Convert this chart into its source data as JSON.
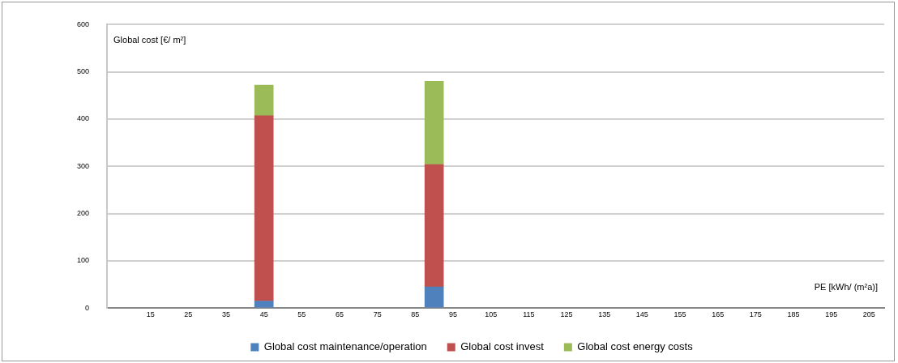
{
  "chart_data": {
    "type": "bar",
    "stacked": true,
    "xlabel": "PE [kWh/ (m²a)]",
    "ylabel": "Global cost [€/ m²]",
    "x": [
      45,
      90
    ],
    "series": [
      {
        "name": "Global cost maintenance/operation",
        "color": "#4f81bd",
        "values": [
          15,
          45
        ]
      },
      {
        "name": "Global cost invest",
        "color": "#c0504d",
        "values": [
          392,
          259
        ]
      },
      {
        "name": "Global cost energy costs",
        "color": "#9bbb59",
        "values": [
          65,
          176
        ]
      }
    ],
    "xlim": [
      3.5,
      209
    ],
    "xticks": [
      15,
      25,
      35,
      45,
      55,
      65,
      75,
      85,
      95,
      105,
      115,
      125,
      135,
      145,
      155,
      165,
      175,
      185,
      195,
      205
    ],
    "ylim": [
      0,
      600
    ],
    "yticks": [
      0,
      100,
      200,
      300,
      400,
      500,
      600
    ],
    "grid": "y",
    "legend": "bottom"
  }
}
